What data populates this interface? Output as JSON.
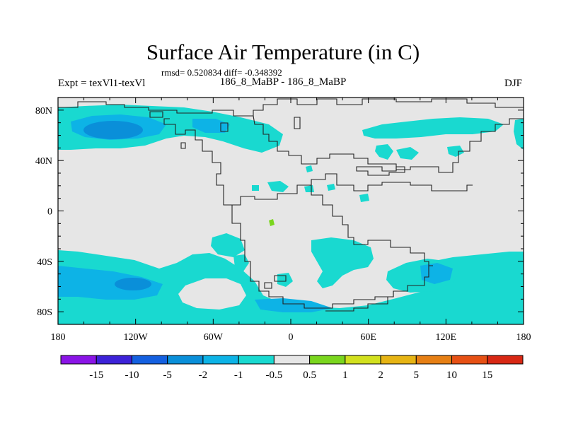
{
  "title": "Surface Air Temperature (in C)",
  "subtitle": "rmsd= 0.520834 diff= -0.348392",
  "left_label": "Expt = texVl1-texVl",
  "center_label": "186_8_MaBP - 186_8_MaBP",
  "right_label": "DJF",
  "colors": {
    "background_field": "#e6e6e6",
    "cyan_field": "#19d9d0",
    "blue_field": "#0db3e6",
    "deep_blue_field": "#0a8fd9",
    "green_field": "#7ad61e",
    "coastline": "#222222"
  },
  "map": {
    "projection": "cylindrical equidistant",
    "lon_range": [
      -180,
      180
    ],
    "lat_range": [
      -90,
      90
    ],
    "x_ticks": [
      "180",
      "120W",
      "60W",
      "0",
      "60E",
      "120E",
      "180"
    ],
    "y_ticks": [
      "80N",
      "40N",
      "0",
      "40S",
      "80S"
    ]
  },
  "colorbar": {
    "levels": [
      "-15",
      "-10",
      "-5",
      "-2",
      "-1",
      "-0.5",
      "0.5",
      "1",
      "2",
      "5",
      "10",
      "15"
    ],
    "colors": [
      "#8a14e6",
      "#3c22d8",
      "#1460e0",
      "#0a8fd9",
      "#0db3e6",
      "#19d9d0",
      "#e6e6e6",
      "#7ad61e",
      "#d2e01e",
      "#e6b414",
      "#e67f14",
      "#e65014",
      "#d82814"
    ]
  }
}
